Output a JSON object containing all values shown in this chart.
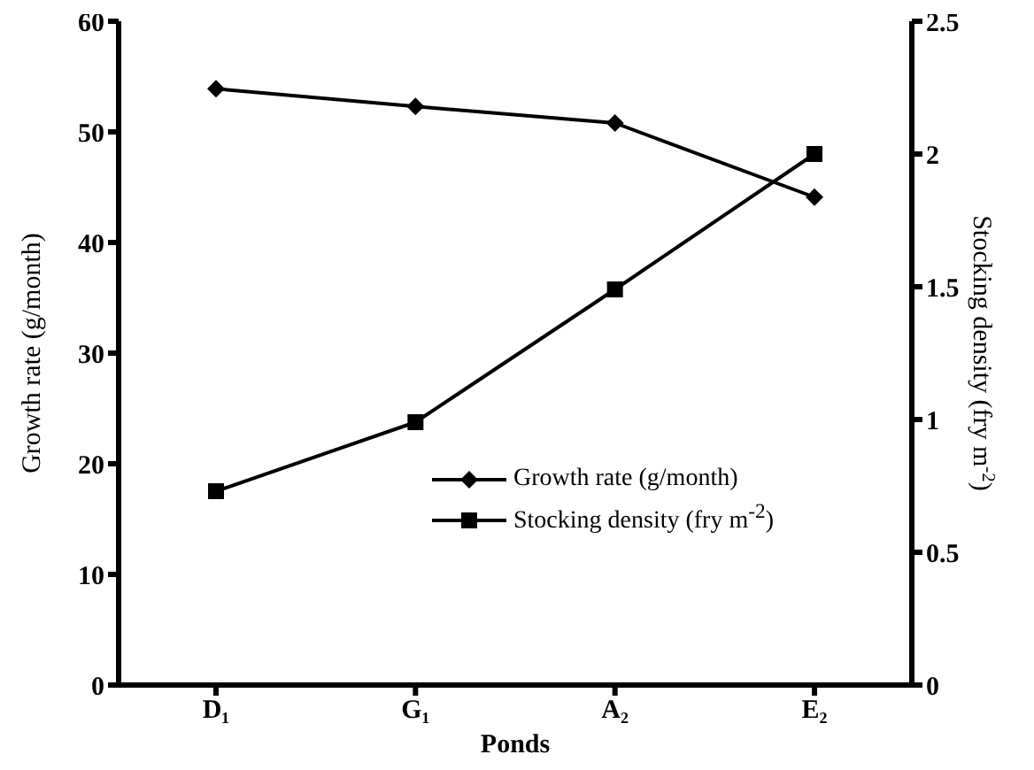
{
  "chart_data": {
    "type": "line",
    "xlabel": "Ponds",
    "ylabel": "Growth rate (g/month)",
    "y2label": "Stocking density (fry m$^{-2}$)",
    "categories": [
      "D₁",
      "G₁",
      "A₂",
      "E₂"
    ],
    "series": [
      {
        "name": "Growth rate (g/month)",
        "color": "#000000",
        "marker": "diamond",
        "values": [
          53.9,
          52.3,
          50.8,
          44.1
        ]
      },
      {
        "name": "Stocking density (fry m$^{-2}$)",
        "color": "#000000",
        "marker": "square",
        "axis": "y2",
        "values": [
          0.73,
          0.99,
          1.49,
          2.0
        ]
      }
    ],
    "ylim": [
      0,
      60
    ],
    "yticks": [
      0,
      10,
      20,
      30,
      40,
      50,
      60
    ],
    "y2lim": [
      0,
      2.5
    ],
    "y2ticks": [
      0,
      0.5,
      1,
      1.5,
      2,
      2.5
    ],
    "grid": false,
    "legend": "bottom right",
    "line_style": "solid"
  }
}
